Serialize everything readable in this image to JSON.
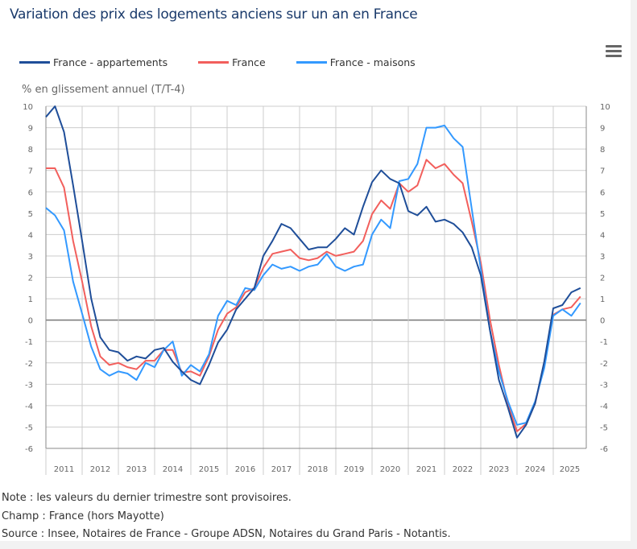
{
  "title": "Variation des prix des logements anciens sur un an en France",
  "menu_icon": "hamburger-menu-icon",
  "notes": [
    "Note : les valeurs du dernier trimestre sont provisoires.",
    "Champ : France (hors Mayotte)",
    "Source : Insee, Notaires de France - Groupe ADSN, Notaires du Grand Paris - Notantis."
  ],
  "chart_data": {
    "type": "line",
    "title": "Variation des prix des logements anciens sur un an en France",
    "ylabel": "% en glissement annuel (T/T-4)",
    "xlabel": "",
    "ylim": [
      -6,
      10
    ],
    "yticks": [
      10,
      9,
      8,
      7,
      6,
      5,
      4,
      3,
      2,
      1,
      0,
      -1,
      -2,
      -3,
      -4,
      -5,
      -6
    ],
    "year_labels": [
      "2011",
      "2012",
      "2013",
      "2014",
      "2015",
      "2016",
      "2017",
      "2018",
      "2019",
      "2020",
      "2021",
      "2022",
      "2023",
      "2024",
      "2025"
    ],
    "grid": true,
    "legend_position": "top-left",
    "series": [
      {
        "name": "France - appartements",
        "color": "#1f4e99",
        "values": [
          9.5,
          10.0,
          8.8,
          6.3,
          3.7,
          1.0,
          -0.8,
          -1.4,
          -1.5,
          -1.9,
          -1.7,
          -1.8,
          -1.4,
          -1.3,
          -1.95,
          -2.4,
          -2.8,
          -3.0,
          -2.1,
          -1.05,
          -0.45,
          0.5,
          1.0,
          1.5,
          3.0,
          3.7,
          4.5,
          4.3,
          3.8,
          3.3,
          3.4,
          3.4,
          3.8,
          4.3,
          4.0,
          5.3,
          6.45,
          7.0,
          6.6,
          6.4,
          5.1,
          4.9,
          5.3,
          4.6,
          4.7,
          4.5,
          4.1,
          3.4,
          2.1,
          -0.45,
          -2.8,
          -4.1,
          -5.5,
          -4.9,
          -3.9,
          -1.95,
          0.55,
          0.7,
          1.3,
          1.5
        ]
      },
      {
        "name": "France",
        "color": "#f25f5c",
        "values": [
          7.1,
          7.1,
          6.2,
          3.7,
          1.8,
          -0.3,
          -1.7,
          -2.1,
          -2.0,
          -2.2,
          -2.3,
          -1.9,
          -1.9,
          -1.4,
          -1.4,
          -2.45,
          -2.4,
          -2.6,
          -1.7,
          -0.45,
          0.3,
          0.6,
          1.3,
          1.5,
          2.45,
          3.1,
          3.2,
          3.3,
          2.9,
          2.8,
          2.9,
          3.2,
          3.0,
          3.1,
          3.2,
          3.7,
          4.95,
          5.6,
          5.2,
          6.4,
          6.0,
          6.3,
          7.5,
          7.1,
          7.3,
          6.8,
          6.4,
          4.6,
          2.7,
          0.05,
          -2.1,
          -3.95,
          -5.2,
          -4.85,
          -3.9,
          -2.05,
          0.25,
          0.5,
          0.6,
          1.1
        ]
      },
      {
        "name": "France - maisons",
        "color": "#3399ff",
        "values": [
          5.25,
          4.9,
          4.2,
          1.8,
          0.3,
          -1.25,
          -2.3,
          -2.6,
          -2.4,
          -2.5,
          -2.8,
          -2.0,
          -2.2,
          -1.4,
          -1.0,
          -2.6,
          -2.1,
          -2.4,
          -1.6,
          0.2,
          0.9,
          0.7,
          1.5,
          1.4,
          2.1,
          2.6,
          2.4,
          2.5,
          2.3,
          2.5,
          2.6,
          3.1,
          2.5,
          2.3,
          2.5,
          2.6,
          4.0,
          4.7,
          4.3,
          6.5,
          6.6,
          7.3,
          9.0,
          9.0,
          9.1,
          8.5,
          8.1,
          5.2,
          2.4,
          -0.45,
          -2.4,
          -3.8,
          -4.9,
          -4.8,
          -3.8,
          -2.25,
          0.2,
          0.5,
          0.2,
          0.8
        ]
      }
    ]
  }
}
